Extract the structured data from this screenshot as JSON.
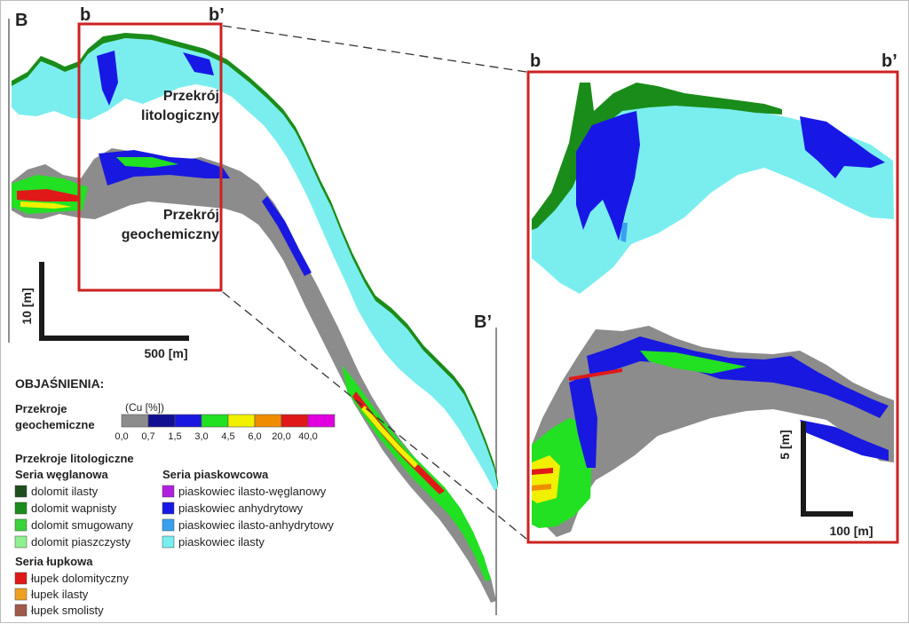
{
  "panel_left_label": "B",
  "panel_right_label": "B’",
  "detail_start_label": "b",
  "detail_end_label": "b’",
  "section_litho_label": [
    "Przekrój",
    "litologiczny"
  ],
  "section_geo_label": [
    "Przekrój",
    "geochemiczny"
  ],
  "scale_main": {
    "vertical": "10 [m]",
    "horizontal": "500 [m]"
  },
  "scale_detail": {
    "vertical": "5 [m]",
    "horizontal": "100 [m]"
  },
  "legend": {
    "title": "OBJAŚNIENIA:",
    "geochem_label": [
      "Przekroje",
      "geochemiczne"
    ],
    "cu_label": "(Cu [%])",
    "cu_ticks": [
      "0,0",
      "0,7",
      "1,5",
      "3,0",
      "4,5",
      "6,0",
      "20,0",
      "40,0"
    ],
    "cu_colors": [
      "#8c8c8c",
      "#101090",
      "#1818e0",
      "#22e022",
      "#f0f000",
      "#f08c00",
      "#e01818",
      "#e000e0"
    ],
    "litho_label": "Przekroje litologiczne",
    "carbonate_series": {
      "title": "Seria węglanowa",
      "items": [
        {
          "label": "dolomit ilasty",
          "color": "#1e4d1e"
        },
        {
          "label": "dolomit wapnisty",
          "color": "#1a8c1a"
        },
        {
          "label": "dolomit smugowany",
          "color": "#3ad23a"
        },
        {
          "label": "dolomit piaszczysty",
          "color": "#8ef08e"
        }
      ]
    },
    "sandstone_series": {
      "title": "Seria piaskowcowa",
      "items": [
        {
          "label": "piaskowiec ilasto-węglanowy",
          "color": "#b020e0"
        },
        {
          "label": "piaskowiec anhydrytowy",
          "color": "#1818e6"
        },
        {
          "label": "piaskowiec ilasto-anhydrytowy",
          "color": "#3aa0f0"
        },
        {
          "label": "piaskowiec ilasty",
          "color": "#7aeeee"
        }
      ]
    },
    "shale_series": {
      "title": "Seria łupkowa",
      "items": [
        {
          "label": "łupek dolomityczny",
          "color": "#e01818"
        },
        {
          "label": "łupek ilasty",
          "color": "#f0a020"
        },
        {
          "label": "łupek smolisty",
          "color": "#a05a4a"
        }
      ]
    }
  },
  "colors": {
    "frame": "#cc2222",
    "scale_bar": "#1a1a1a",
    "grey_ore": "#8c8c8c",
    "lithology_cyan": "#7aeeee",
    "lithology_green": "#1a8c1a",
    "geo_blue": "#1818e0"
  }
}
